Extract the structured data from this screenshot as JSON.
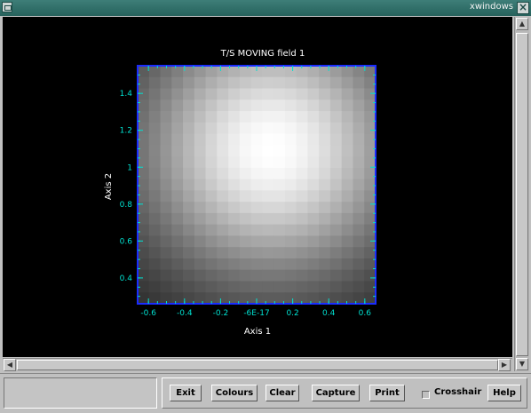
{
  "window": {
    "title": "xwindows"
  },
  "icons": {
    "menu": "window-menu-icon",
    "close": "close-icon"
  },
  "chart_data": {
    "type": "heatmap",
    "title": "T/S MOVING field 1",
    "xlabel": "Axis 1",
    "ylabel": "Axis 2",
    "xlim": [
      -0.66,
      0.66
    ],
    "ylim": [
      0.26,
      1.55
    ],
    "x_ticks": [
      -0.6,
      -0.4,
      -0.2,
      0,
      0.2,
      0.4,
      0.6
    ],
    "x_tick_labels": [
      "-0.6",
      "-0.4",
      "-0.2",
      "-6E-17",
      "0.2",
      "0.4",
      "0.6"
    ],
    "y_ticks": [
      0.4,
      0.6,
      0.8,
      1,
      1.2,
      1.4
    ],
    "y_tick_labels": [
      "0.4",
      "0.6",
      "0.8",
      "1",
      "1.2",
      "1.4"
    ],
    "grid": false,
    "colormap": "grayscale",
    "axis_color": "#1a2cff",
    "tick_color": "#00e0d0",
    "field": {
      "peak_x": 0.08,
      "peak_y": 1.1,
      "nx": 21,
      "ny": 21
    }
  },
  "toolbar": {
    "exit": "Exit",
    "colours": "Colours",
    "clear": "Clear",
    "capture": "Capture",
    "print": "Print",
    "crosshair": "Crosshair",
    "help": "Help"
  }
}
